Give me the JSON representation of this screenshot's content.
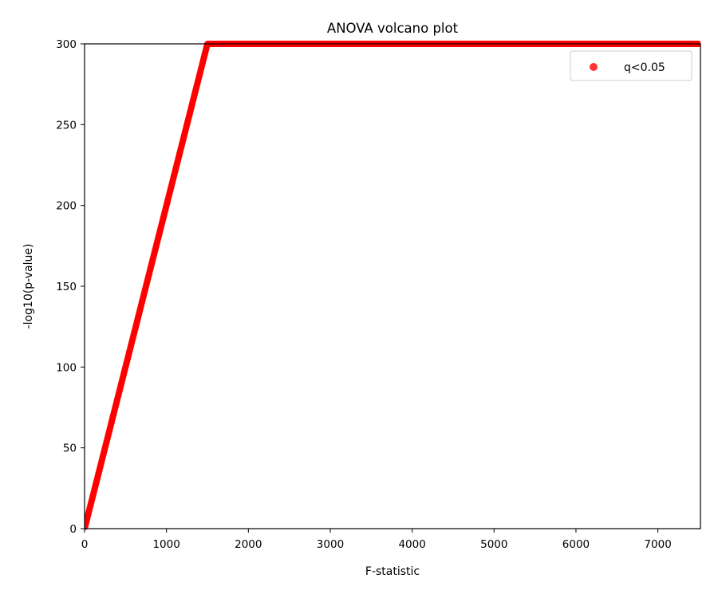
{
  "chart_data": {
    "type": "scatter",
    "title": "ANOVA volcano plot",
    "xlabel": "F-statistic",
    "ylabel": "-log10(p-value)",
    "xlim": [
      0,
      7520
    ],
    "ylim": [
      0,
      300
    ],
    "xticks": [
      0,
      1000,
      2000,
      3000,
      4000,
      5000,
      6000,
      7000
    ],
    "yticks": [
      0,
      50,
      100,
      150,
      200,
      250,
      300
    ],
    "grid": false,
    "legend_position": "top-right",
    "series": [
      {
        "name": "q<0.05",
        "color": "#ff0000",
        "marker": "circle",
        "alpha": 0.8,
        "points": [
          [
            5,
            1
          ],
          [
            20,
            4
          ],
          [
            50,
            10
          ],
          [
            100,
            20
          ],
          [
            150,
            30
          ],
          [
            200,
            40
          ],
          [
            250,
            50
          ],
          [
            300,
            60
          ],
          [
            350,
            70
          ],
          [
            400,
            80
          ],
          [
            450,
            90
          ],
          [
            500,
            100
          ],
          [
            550,
            110
          ],
          [
            600,
            120
          ],
          [
            650,
            130
          ],
          [
            700,
            140
          ],
          [
            750,
            150
          ],
          [
            800,
            160
          ],
          [
            850,
            170
          ],
          [
            900,
            180
          ],
          [
            950,
            190
          ],
          [
            1000,
            200
          ],
          [
            1050,
            210
          ],
          [
            1100,
            220
          ],
          [
            1150,
            230
          ],
          [
            1200,
            240
          ],
          [
            1250,
            250
          ],
          [
            1300,
            260
          ],
          [
            1350,
            270
          ],
          [
            1400,
            280
          ],
          [
            1450,
            290
          ],
          [
            1500,
            300
          ],
          [
            1600,
            300
          ],
          [
            1800,
            300
          ],
          [
            2000,
            300
          ],
          [
            2200,
            300
          ],
          [
            2400,
            300
          ],
          [
            2600,
            300
          ],
          [
            2800,
            300
          ],
          [
            3000,
            300
          ],
          [
            3200,
            300
          ],
          [
            3400,
            300
          ],
          [
            3600,
            300
          ],
          [
            3800,
            300
          ],
          [
            4000,
            300
          ],
          [
            4200,
            300
          ],
          [
            4400,
            300
          ],
          [
            4600,
            300
          ],
          [
            4800,
            300
          ],
          [
            5000,
            300
          ],
          [
            5200,
            300
          ],
          [
            5400,
            300
          ],
          [
            5600,
            300
          ],
          [
            5800,
            300
          ],
          [
            6000,
            300
          ],
          [
            6200,
            300
          ],
          [
            6400,
            300
          ],
          [
            6600,
            300
          ],
          [
            6800,
            300
          ],
          [
            7000,
            300
          ],
          [
            7200,
            300
          ],
          [
            7400,
            300
          ],
          [
            7500,
            300
          ]
        ]
      }
    ]
  }
}
